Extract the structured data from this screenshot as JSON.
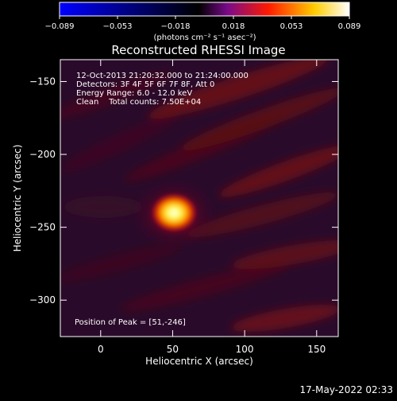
{
  "chart_data": {
    "type": "heatmap",
    "title": "Reconstructed RHESSI Image",
    "xlabel": "Heliocentric X (arcsec)",
    "ylabel": "Heliocentric Y (arcsec)",
    "xlim": [
      -28,
      165
    ],
    "ylim": [
      -325,
      -135
    ],
    "x_ticks": [
      0,
      50,
      100,
      150
    ],
    "y_ticks": [
      -150,
      -200,
      -250,
      -300
    ],
    "colorbar": {
      "range": [
        -0.089,
        0.089
      ],
      "tick_labels": [
        "-0.089",
        "-0.053",
        "-0.018",
        "0.018",
        "0.053",
        "0.089"
      ],
      "unit_label": "(photons cm⁻² s⁻¹ asec⁻²)",
      "colormap": [
        "#0000ff",
        "#000000",
        "#800080",
        "#ff0000",
        "#ffff00",
        "#ffffff"
      ]
    },
    "annotations": {
      "time": "12-Oct-2013 21:20:32.000 to 21:24:00.000",
      "detectors": "Detectors: 3F 4F 5F 6F 7F 8F, Att 0",
      "energy": "Energy Range: 6.0 - 12.0 keV",
      "clean": "Clean    Total counts: 7.50E+04",
      "peak": "Position of Peak = [51,-246]"
    },
    "peak": {
      "x": 51,
      "y": -246,
      "value": 0.089
    },
    "footer_date": "17-May-2022 02:33"
  }
}
